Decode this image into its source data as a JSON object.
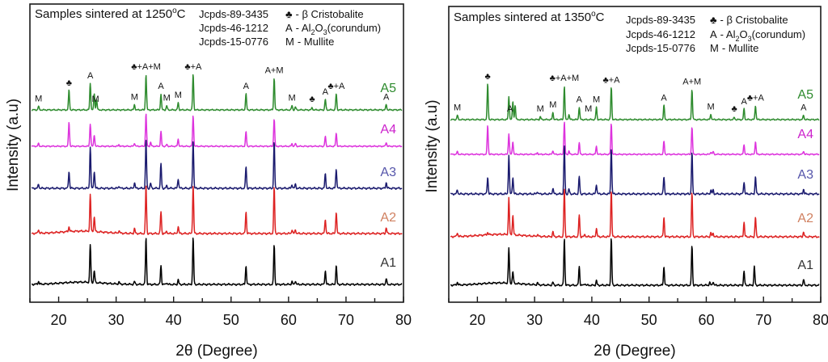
{
  "chart_data": [
    {
      "type": "line",
      "title": "Samples sintered at 1250°C",
      "title_parts": {
        "text": "Samples sintered at 1250",
        "sup": "o",
        "unit": "C"
      },
      "xlabel": "2θ (Degree)",
      "ylabel": "Intensity (a.u)",
      "xlim": [
        15,
        80
      ],
      "xticks": [
        20,
        30,
        40,
        50,
        60,
        70,
        80
      ],
      "minor_xticks": [
        15,
        25,
        35,
        45,
        55,
        65,
        75
      ],
      "grid": false,
      "legend": {
        "placement": "top-right",
        "references": [
          "Jcpds-89-3435",
          "Jcpds-46-1212",
          "Jcpds-15-0776"
        ],
        "phases": [
          {
            "symbol": "♣",
            "text": "- β Cristobalite"
          },
          {
            "symbol": "A",
            "text": "- Al",
            "sub1": "2",
            "mid": "O",
            "sub2": "3",
            "tail": "(corundum)"
          },
          {
            "symbol": "M",
            "text": "- Mullite"
          }
        ]
      },
      "peak_annotations": [
        {
          "x": 16.5,
          "label": "M"
        },
        {
          "x": 21.8,
          "label": "♣"
        },
        {
          "x": 25.5,
          "label": "A"
        },
        {
          "x": 26.4,
          "label": "M"
        },
        {
          "x": 33.2,
          "label": "M"
        },
        {
          "x": 35.2,
          "label": "♣+A+M"
        },
        {
          "x": 37.8,
          "label": "A"
        },
        {
          "x": 38.8,
          "label": "M"
        },
        {
          "x": 40.8,
          "label": "M"
        },
        {
          "x": 43.4,
          "label": "♣+A"
        },
        {
          "x": 52.6,
          "label": "A"
        },
        {
          "x": 57.5,
          "label": "A+M"
        },
        {
          "x": 60.6,
          "label": "M"
        },
        {
          "x": 64.1,
          "label": "♣"
        },
        {
          "x": 66.4,
          "label": "A"
        },
        {
          "x": 68.3,
          "label": "♣+A"
        },
        {
          "x": 77.0,
          "label": "A"
        }
      ],
      "series": [
        {
          "name": "A5",
          "color": "#2e8b2e",
          "label_color": "#2e8b2e",
          "peaks": [
            [
              16.5,
              0.1
            ],
            [
              21.8,
              0.55
            ],
            [
              25.5,
              0.75
            ],
            [
              26.2,
              0.45
            ],
            [
              26.6,
              0.3
            ],
            [
              33.2,
              0.15
            ],
            [
              35.2,
              1.0
            ],
            [
              37.8,
              0.45
            ],
            [
              38.8,
              0.12
            ],
            [
              40.8,
              0.2
            ],
            [
              43.4,
              1.0
            ],
            [
              52.6,
              0.45
            ],
            [
              57.5,
              0.9
            ],
            [
              60.6,
              0.12
            ],
            [
              61.2,
              0.08
            ],
            [
              64.1,
              0.06
            ],
            [
              66.4,
              0.3
            ],
            [
              68.3,
              0.45
            ],
            [
              77.0,
              0.15
            ]
          ]
        },
        {
          "name": "A4",
          "color": "#dd33dd",
          "label_color": "#cc22cc",
          "peaks": [
            [
              16.5,
              0.08
            ],
            [
              21.8,
              0.75
            ],
            [
              25.5,
              0.7
            ],
            [
              26.2,
              0.35
            ],
            [
              30.5,
              0.05
            ],
            [
              33.2,
              0.1
            ],
            [
              35.2,
              1.0
            ],
            [
              36.0,
              0.12
            ],
            [
              37.8,
              0.45
            ],
            [
              38.8,
              0.05
            ],
            [
              40.8,
              0.22
            ],
            [
              43.4,
              0.95
            ],
            [
              52.6,
              0.45
            ],
            [
              57.5,
              0.85
            ],
            [
              60.6,
              0.08
            ],
            [
              61.2,
              0.08
            ],
            [
              66.4,
              0.3
            ],
            [
              68.3,
              0.4
            ],
            [
              77.0,
              0.12
            ]
          ]
        },
        {
          "name": "A3",
          "color": "#1a1a6e",
          "label_color": "#5555aa",
          "peaks": [
            [
              16.5,
              0.08
            ],
            [
              21.8,
              0.35
            ],
            [
              25.5,
              0.85
            ],
            [
              26.2,
              0.35
            ],
            [
              30.5,
              0.05
            ],
            [
              33.2,
              0.12
            ],
            [
              35.2,
              1.0
            ],
            [
              36.0,
              0.1
            ],
            [
              37.8,
              0.5
            ],
            [
              38.8,
              0.05
            ],
            [
              40.8,
              0.2
            ],
            [
              43.4,
              1.0
            ],
            [
              52.6,
              0.45
            ],
            [
              57.5,
              0.95
            ],
            [
              60.6,
              0.08
            ],
            [
              61.2,
              0.08
            ],
            [
              66.4,
              0.3
            ],
            [
              68.3,
              0.4
            ],
            [
              77.0,
              0.12
            ]
          ]
        },
        {
          "name": "A2",
          "color": "#dd2222",
          "label_color": "#d08060",
          "peaks": [
            [
              16.5,
              0.08
            ],
            [
              21.8,
              0.1
            ],
            [
              25.5,
              0.75
            ],
            [
              26.2,
              0.3
            ],
            [
              30.5,
              0.05
            ],
            [
              33.2,
              0.1
            ],
            [
              35.2,
              1.0
            ],
            [
              37.8,
              0.45
            ],
            [
              38.8,
              0.05
            ],
            [
              40.8,
              0.15
            ],
            [
              43.4,
              1.0
            ],
            [
              52.6,
              0.45
            ],
            [
              57.5,
              0.95
            ],
            [
              60.6,
              0.08
            ],
            [
              61.2,
              0.08
            ],
            [
              66.4,
              0.3
            ],
            [
              68.3,
              0.45
            ],
            [
              77.0,
              0.12
            ]
          ]
        },
        {
          "name": "A1",
          "color": "#000000",
          "label_color": "#333333",
          "peaks": [
            [
              16.5,
              0.06
            ],
            [
              25.5,
              0.8
            ],
            [
              26.2,
              0.25
            ],
            [
              30.5,
              0.04
            ],
            [
              33.2,
              0.06
            ],
            [
              35.2,
              1.0
            ],
            [
              37.8,
              0.4
            ],
            [
              38.8,
              0.04
            ],
            [
              40.8,
              0.1
            ],
            [
              43.4,
              1.0
            ],
            [
              52.6,
              0.4
            ],
            [
              57.5,
              0.85
            ],
            [
              60.6,
              0.06
            ],
            [
              61.2,
              0.08
            ],
            [
              66.4,
              0.3
            ],
            [
              68.3,
              0.4
            ],
            [
              77.0,
              0.12
            ]
          ]
        }
      ]
    },
    {
      "type": "line",
      "title": "Samples sintered at 1350°C",
      "title_parts": {
        "text": "Samples sintered at 1350",
        "sup": "o",
        "unit": "C"
      },
      "xlabel": "2θ (Degree)",
      "ylabel": "Intensity (a.u)",
      "xlim": [
        15,
        80
      ],
      "xticks": [
        20,
        30,
        40,
        50,
        60,
        70,
        80
      ],
      "minor_xticks": [
        15,
        25,
        35,
        45,
        55,
        65,
        75
      ],
      "grid": false,
      "legend": {
        "placement": "top-right",
        "references": [
          "Jcpds-89-3435",
          "Jcpds-46-1212",
          "Jcpds-15-0776"
        ],
        "phases": [
          {
            "symbol": "♣",
            "text": "- β Cristobalite"
          },
          {
            "symbol": "A",
            "text": "- Al",
            "sub1": "2",
            "mid": "O",
            "sub2": "3",
            "tail": "(corundum)"
          },
          {
            "symbol": "M",
            "text": "- Mullite"
          }
        ]
      },
      "peak_annotations": [
        {
          "x": 16.5,
          "label": "M"
        },
        {
          "x": 21.8,
          "label": "♣"
        },
        {
          "x": 25.7,
          "label": "A"
        },
        {
          "x": 31.0,
          "label": "M"
        },
        {
          "x": 33.2,
          "label": "M"
        },
        {
          "x": 35.2,
          "label": "♣+A+M"
        },
        {
          "x": 37.8,
          "label": "A"
        },
        {
          "x": 39.4,
          "label": "M"
        },
        {
          "x": 40.8,
          "label": "M"
        },
        {
          "x": 43.4,
          "label": "♣+A"
        },
        {
          "x": 52.6,
          "label": "A"
        },
        {
          "x": 57.5,
          "label": "A+M"
        },
        {
          "x": 60.8,
          "label": "M"
        },
        {
          "x": 64.9,
          "label": "♣"
        },
        {
          "x": 66.6,
          "label": "A"
        },
        {
          "x": 68.6,
          "label": "♣+A"
        },
        {
          "x": 77.0,
          "label": "A"
        }
      ],
      "series": [
        {
          "name": "A5",
          "color": "#2e8b2e",
          "label_color": "#2e8b2e",
          "peaks": [
            [
              16.5,
              0.12
            ],
            [
              21.8,
              1.0
            ],
            [
              25.5,
              0.65
            ],
            [
              26.2,
              0.5
            ],
            [
              26.6,
              0.4
            ],
            [
              31.0,
              0.08
            ],
            [
              33.2,
              0.2
            ],
            [
              35.2,
              0.95
            ],
            [
              36.0,
              0.15
            ],
            [
              37.8,
              0.35
            ],
            [
              40.8,
              0.35
            ],
            [
              43.4,
              0.9
            ],
            [
              52.6,
              0.4
            ],
            [
              57.5,
              0.85
            ],
            [
              60.8,
              0.15
            ],
            [
              64.9,
              0.06
            ],
            [
              66.6,
              0.3
            ],
            [
              68.6,
              0.4
            ],
            [
              77.0,
              0.12
            ]
          ]
        },
        {
          "name": "A4",
          "color": "#dd33dd",
          "label_color": "#cc22cc",
          "peaks": [
            [
              16.5,
              0.08
            ],
            [
              21.8,
              0.9
            ],
            [
              25.5,
              0.65
            ],
            [
              26.2,
              0.4
            ],
            [
              30.5,
              0.05
            ],
            [
              33.2,
              0.12
            ],
            [
              35.2,
              1.0
            ],
            [
              36.0,
              0.1
            ],
            [
              37.8,
              0.35
            ],
            [
              40.8,
              0.25
            ],
            [
              43.4,
              0.95
            ],
            [
              52.6,
              0.4
            ],
            [
              57.5,
              0.85
            ],
            [
              60.8,
              0.08
            ],
            [
              61.2,
              0.08
            ],
            [
              66.6,
              0.3
            ],
            [
              68.6,
              0.4
            ],
            [
              77.0,
              0.1
            ]
          ]
        },
        {
          "name": "A3",
          "color": "#1a1a6e",
          "label_color": "#5555aa",
          "peaks": [
            [
              16.5,
              0.08
            ],
            [
              21.8,
              0.35
            ],
            [
              25.5,
              0.8
            ],
            [
              26.2,
              0.35
            ],
            [
              30.5,
              0.05
            ],
            [
              33.2,
              0.12
            ],
            [
              35.2,
              1.0
            ],
            [
              36.0,
              0.1
            ],
            [
              37.8,
              0.35
            ],
            [
              40.8,
              0.2
            ],
            [
              43.4,
              0.95
            ],
            [
              52.6,
              0.35
            ],
            [
              57.5,
              0.85
            ],
            [
              60.8,
              0.08
            ],
            [
              61.2,
              0.08
            ],
            [
              66.6,
              0.25
            ],
            [
              68.6,
              0.35
            ],
            [
              77.0,
              0.1
            ]
          ]
        },
        {
          "name": "A2",
          "color": "#dd2222",
          "label_color": "#d08060",
          "peaks": [
            [
              16.5,
              0.08
            ],
            [
              21.8,
              0.05
            ],
            [
              25.5,
              0.75
            ],
            [
              26.2,
              0.4
            ],
            [
              30.5,
              0.04
            ],
            [
              33.2,
              0.1
            ],
            [
              35.2,
              1.0
            ],
            [
              37.8,
              0.45
            ],
            [
              38.8,
              0.05
            ],
            [
              40.8,
              0.18
            ],
            [
              43.4,
              0.95
            ],
            [
              52.6,
              0.4
            ],
            [
              57.5,
              0.9
            ],
            [
              60.8,
              0.08
            ],
            [
              61.2,
              0.08
            ],
            [
              66.6,
              0.3
            ],
            [
              68.6,
              0.4
            ],
            [
              77.0,
              0.1
            ]
          ]
        },
        {
          "name": "A1",
          "color": "#000000",
          "label_color": "#333333",
          "peaks": [
            [
              16.5,
              0.06
            ],
            [
              25.5,
              0.75
            ],
            [
              26.2,
              0.25
            ],
            [
              30.5,
              0.04
            ],
            [
              33.2,
              0.06
            ],
            [
              35.2,
              1.0
            ],
            [
              37.8,
              0.4
            ],
            [
              38.8,
              0.04
            ],
            [
              40.8,
              0.1
            ],
            [
              43.4,
              1.0
            ],
            [
              52.6,
              0.4
            ],
            [
              57.5,
              0.85
            ],
            [
              60.6,
              0.06
            ],
            [
              61.2,
              0.08
            ],
            [
              66.6,
              0.3
            ],
            [
              68.4,
              0.4
            ],
            [
              77.0,
              0.12
            ]
          ]
        }
      ]
    }
  ]
}
